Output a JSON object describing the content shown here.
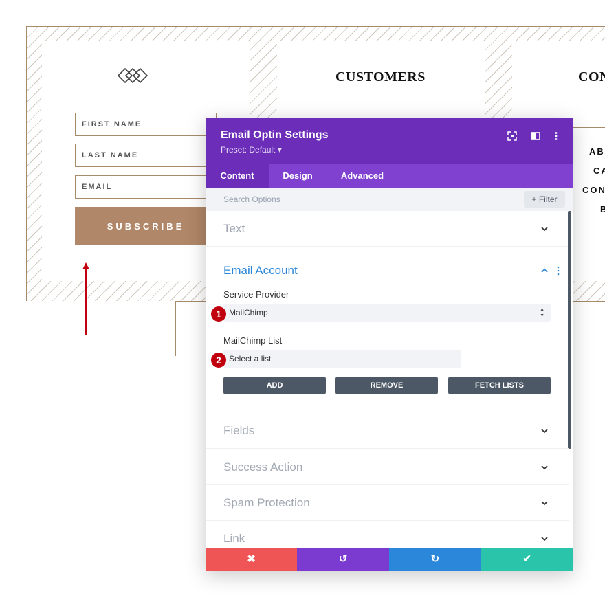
{
  "page": {
    "fields": {
      "first_name": "FIRST NAME",
      "last_name": "LAST NAME",
      "email": "EMAIL"
    },
    "subscribe_label": "SUBSCRIBE",
    "column_titles": [
      "CUSTOMERS",
      "CON"
    ],
    "side_text": [
      "ABC",
      "CA",
      "CONT",
      "B"
    ],
    "accent_color": "#b08768",
    "logo_icon": "interlocking-diamonds-icon",
    "pointer_arrow_icon": "red-up-arrow-icon"
  },
  "modal": {
    "title": "Email Optin Settings",
    "preset": "Preset: Default ▾",
    "header_icons": [
      "focus-icon",
      "split-view-icon",
      "more-vertical-icon"
    ],
    "tabs": [
      {
        "label": "Content",
        "active": true
      },
      {
        "label": "Design",
        "active": false
      },
      {
        "label": "Advanced",
        "active": false
      }
    ],
    "search": {
      "placeholder": "Search Options",
      "value": ""
    },
    "filter_label": "+ Filter",
    "sections_before": [
      {
        "label": "Text",
        "expanded": false
      }
    ],
    "email_account": {
      "title": "Email Account",
      "expanded": true,
      "service_provider_label": "Service Provider",
      "service_provider_value": "MailChimp",
      "list_label": "MailChimp List",
      "list_value": "Select a list",
      "markers": [
        "1",
        "2"
      ],
      "buttons": [
        "ADD",
        "REMOVE",
        "FETCH LISTS"
      ]
    },
    "sections_after": [
      {
        "label": "Fields"
      },
      {
        "label": "Success Action"
      },
      {
        "label": "Spam Protection"
      },
      {
        "label": "Link"
      }
    ],
    "footer": {
      "cancel": "✖",
      "undo": "↺",
      "redo": "↻",
      "save": "✔",
      "colors": {
        "cancel": "#ef5555",
        "undo": "#7c3bd0",
        "redo": "#2b87da",
        "save": "#29c4a9"
      }
    },
    "colors": {
      "header": "#6c2eb9",
      "tabs": "#8040d0",
      "accent": "#2b87da"
    }
  }
}
